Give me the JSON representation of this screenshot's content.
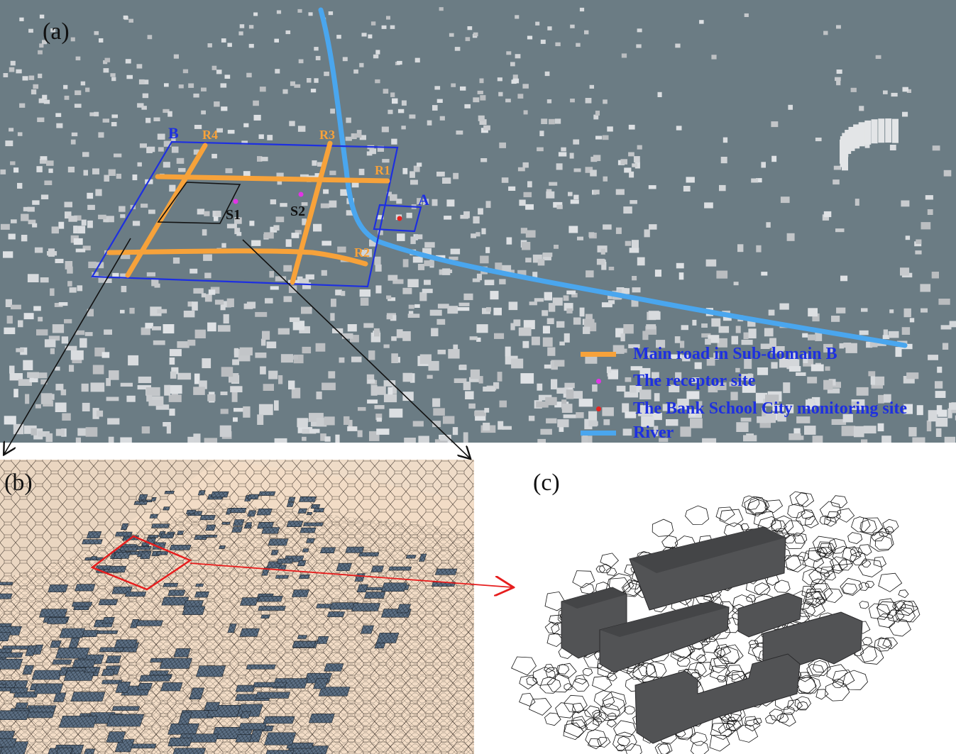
{
  "panels": {
    "a": {
      "label": "(a)",
      "domain_labels": {
        "A": "A",
        "B": "B"
      },
      "roads": [
        "R1",
        "R2",
        "R3",
        "R4"
      ],
      "sites": [
        "S1",
        "S2"
      ]
    },
    "b": {
      "label": "(b)"
    },
    "c": {
      "label": "(c)"
    }
  },
  "legend": [
    {
      "key": "main-road",
      "text": "Main road in Sub-domain B",
      "symbol": "line",
      "color": "#f7a23a"
    },
    {
      "key": "receptor-site",
      "text": "The receptor site",
      "symbol": "dot",
      "color": "#e233e6"
    },
    {
      "key": "monitoring-site",
      "text": "The Bank School City monitoring site",
      "symbol": "dot",
      "color": "#e8221f"
    },
    {
      "key": "river",
      "text": "River",
      "symbol": "line",
      "color": "#4aa6ee"
    }
  ],
  "colors": {
    "map_background": "#6b7c84",
    "buildings": "#c9ced2",
    "domain_boundary": "#1d2fe0",
    "road": "#f7a23a",
    "river": "#4aa6ee",
    "receptor": "#e233e6",
    "monitor": "#e8221f",
    "mesh_background": "#f2dcc6",
    "mesh_buildings": "#5c6f84",
    "zoom_box": "#e61d1d"
  }
}
